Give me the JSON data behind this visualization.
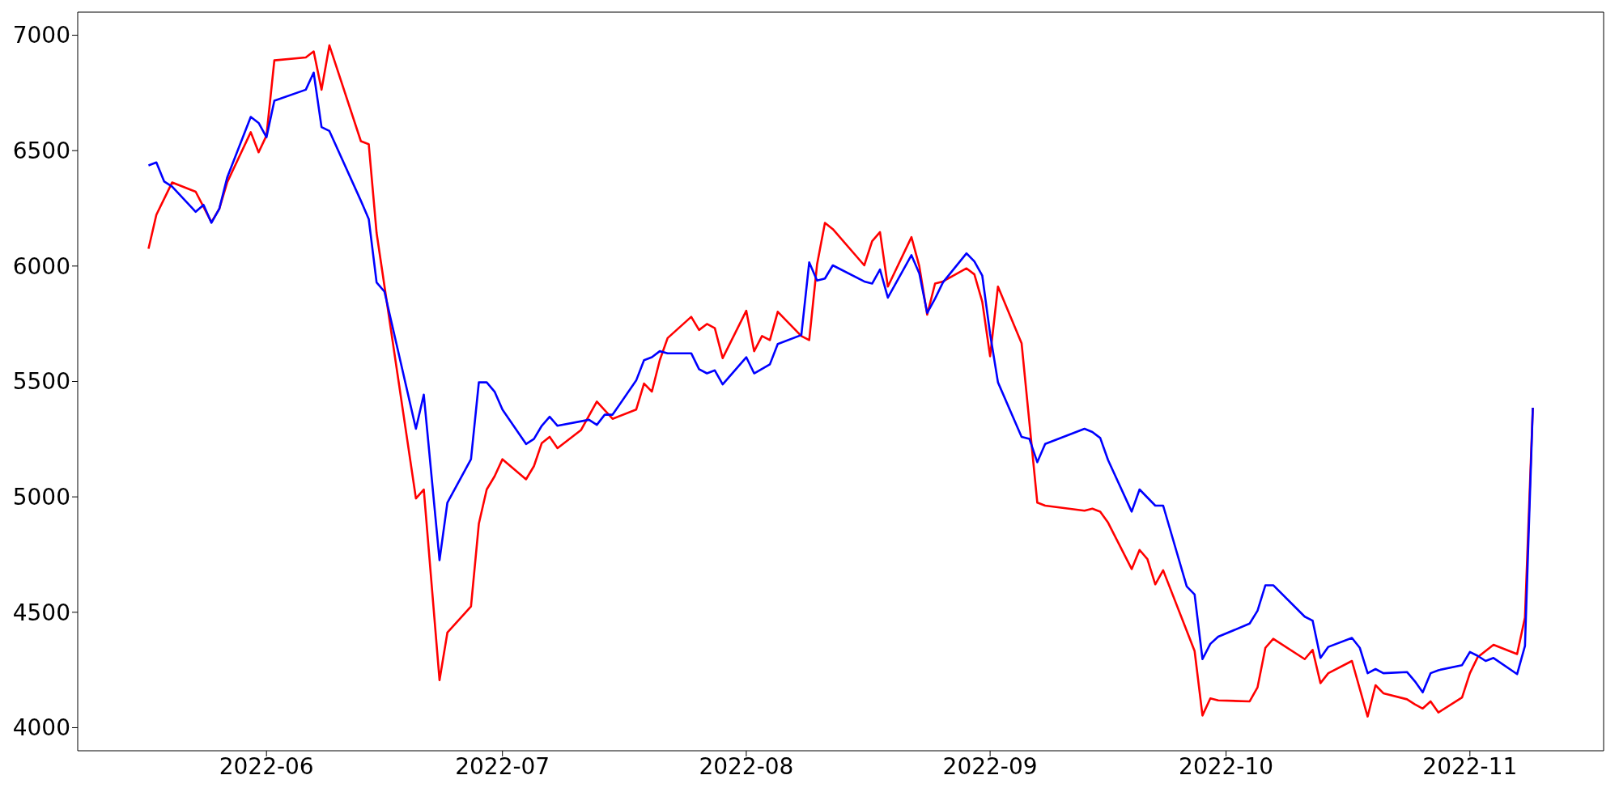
{
  "chart_data": {
    "type": "line",
    "marker": "none",
    "line_style": "solid",
    "xlim": [
      "2022-05-08",
      "2022-11-18"
    ],
    "xticks": [
      "2022-06",
      "2022-07",
      "2022-08",
      "2022-09",
      "2022-10",
      "2022-11"
    ],
    "ylim": [
      3900,
      7100
    ],
    "yticks": [
      4000,
      4500,
      5000,
      5500,
      6000,
      6500,
      7000
    ],
    "series": [
      {
        "color": "#ff0000",
        "x": [
          "2022-05-17",
          "2022-05-18",
          "2022-05-20",
          "2022-05-23",
          "2022-05-25",
          "2022-05-26",
          "2022-05-27",
          "2022-05-30",
          "2022-05-31",
          "2022-06-01",
          "2022-06-02",
          "2022-06-06",
          "2022-06-07",
          "2022-06-08",
          "2022-06-09",
          "2022-06-13",
          "2022-06-14",
          "2022-06-15",
          "2022-06-20",
          "2022-06-21",
          "2022-06-23",
          "2022-06-24",
          "2022-06-27",
          "2022-06-28",
          "2022-06-29",
          "2022-06-30",
          "2022-07-01",
          "2022-07-04",
          "2022-07-05",
          "2022-07-06",
          "2022-07-07",
          "2022-07-08",
          "2022-07-11",
          "2022-07-13",
          "2022-07-15",
          "2022-07-18",
          "2022-07-19",
          "2022-07-20",
          "2022-07-21",
          "2022-07-22",
          "2022-07-25",
          "2022-07-26",
          "2022-07-27",
          "2022-07-28",
          "2022-07-29",
          "2022-08-01",
          "2022-08-02",
          "2022-08-03",
          "2022-08-04",
          "2022-08-05",
          "2022-08-08",
          "2022-08-09",
          "2022-08-10",
          "2022-08-11",
          "2022-08-12",
          "2022-08-16",
          "2022-08-17",
          "2022-08-18",
          "2022-08-19",
          "2022-08-22",
          "2022-08-23",
          "2022-08-24",
          "2022-08-25",
          "2022-08-26",
          "2022-08-29",
          "2022-08-30",
          "2022-08-31",
          "2022-09-01",
          "2022-09-02",
          "2022-09-05",
          "2022-09-07",
          "2022-09-08",
          "2022-09-13",
          "2022-09-14",
          "2022-09-15",
          "2022-09-16",
          "2022-09-19",
          "2022-09-20",
          "2022-09-21",
          "2022-09-22",
          "2022-09-23",
          "2022-09-27",
          "2022-09-28",
          "2022-09-29",
          "2022-09-30",
          "2022-10-04",
          "2022-10-05",
          "2022-10-06",
          "2022-10-07",
          "2022-10-11",
          "2022-10-12",
          "2022-10-13",
          "2022-10-14",
          "2022-10-17",
          "2022-10-19",
          "2022-10-20",
          "2022-10-21",
          "2022-10-24",
          "2022-10-25",
          "2022-10-26",
          "2022-10-27",
          "2022-10-28",
          "2022-10-31",
          "2022-11-01",
          "2022-11-02",
          "2022-11-04",
          "2022-11-07",
          "2022-11-08",
          "2022-11-09"
        ],
        "values": [
          6075,
          6222,
          6362,
          6322,
          6190,
          6248,
          6362,
          6580,
          6493,
          6565,
          6891,
          6904,
          6930,
          6764,
          6956,
          6541,
          6528,
          6143,
          4993,
          5032,
          4206,
          4412,
          4525,
          4884,
          5032,
          5089,
          5163,
          5076,
          5133,
          5233,
          5260,
          5211,
          5290,
          5413,
          5338,
          5378,
          5491,
          5456,
          5592,
          5688,
          5780,
          5723,
          5749,
          5731,
          5601,
          5806,
          5631,
          5697,
          5679,
          5802,
          5697,
          5679,
          6007,
          6187,
          6160,
          6003,
          6108,
          6147,
          5911,
          6125,
          5999,
          5789,
          5924,
          5933,
          5990,
          5964,
          5846,
          5609,
          5911,
          5666,
          4975,
          4962,
          4940,
          4949,
          4936,
          4888,
          4687,
          4770,
          4730,
          4621,
          4682,
          4332,
          4053,
          4127,
          4118,
          4114,
          4175,
          4346,
          4385,
          4297,
          4337,
          4193,
          4236,
          4289,
          4048,
          4184,
          4149,
          4123,
          4101,
          4083,
          4114,
          4066,
          4131,
          4236,
          4306,
          4359,
          4319,
          4477,
          5386
        ]
      },
      {
        "color": "#0000ff",
        "x": [
          "2022-05-17",
          "2022-05-18",
          "2022-05-19",
          "2022-05-20",
          "2022-05-23",
          "2022-05-24",
          "2022-05-25",
          "2022-05-26",
          "2022-05-27",
          "2022-05-30",
          "2022-05-31",
          "2022-06-01",
          "2022-06-02",
          "2022-06-06",
          "2022-06-07",
          "2022-06-08",
          "2022-06-09",
          "2022-06-13",
          "2022-06-14",
          "2022-06-15",
          "2022-06-16",
          "2022-06-20",
          "2022-06-21",
          "2022-06-23",
          "2022-06-24",
          "2022-06-27",
          "2022-06-28",
          "2022-06-29",
          "2022-06-30",
          "2022-07-01",
          "2022-07-04",
          "2022-07-05",
          "2022-07-06",
          "2022-07-07",
          "2022-07-08",
          "2022-07-12",
          "2022-07-13",
          "2022-07-14",
          "2022-07-15",
          "2022-07-18",
          "2022-07-19",
          "2022-07-20",
          "2022-07-21",
          "2022-07-22",
          "2022-07-25",
          "2022-07-26",
          "2022-07-27",
          "2022-07-28",
          "2022-07-29",
          "2022-08-01",
          "2022-08-02",
          "2022-08-04",
          "2022-08-05",
          "2022-08-08",
          "2022-08-09",
          "2022-08-10",
          "2022-08-11",
          "2022-08-12",
          "2022-08-16",
          "2022-08-17",
          "2022-08-18",
          "2022-08-19",
          "2022-08-22",
          "2022-08-23",
          "2022-08-24",
          "2022-08-25",
          "2022-08-26",
          "2022-08-29",
          "2022-08-30",
          "2022-08-31",
          "2022-09-01",
          "2022-09-02",
          "2022-09-05",
          "2022-09-06",
          "2022-09-07",
          "2022-09-08",
          "2022-09-13",
          "2022-09-14",
          "2022-09-15",
          "2022-09-16",
          "2022-09-19",
          "2022-09-20",
          "2022-09-21",
          "2022-09-22",
          "2022-09-23",
          "2022-09-26",
          "2022-09-27",
          "2022-09-28",
          "2022-09-29",
          "2022-09-30",
          "2022-10-04",
          "2022-10-05",
          "2022-10-06",
          "2022-10-07",
          "2022-10-11",
          "2022-10-12",
          "2022-10-13",
          "2022-10-14",
          "2022-10-17",
          "2022-10-18",
          "2022-10-19",
          "2022-10-20",
          "2022-10-21",
          "2022-10-24",
          "2022-10-25",
          "2022-10-26",
          "2022-10-27",
          "2022-10-28",
          "2022-10-31",
          "2022-11-01",
          "2022-11-02",
          "2022-11-03",
          "2022-11-04",
          "2022-11-07",
          "2022-11-08",
          "2022-11-09"
        ],
        "values": [
          6436,
          6449,
          6366,
          6344,
          6235,
          6265,
          6187,
          6248,
          6383,
          6646,
          6620,
          6558,
          6716,
          6764,
          6838,
          6602,
          6585,
          6283,
          6204,
          5929,
          5889,
          5295,
          5443,
          4726,
          4975,
          5163,
          5496,
          5496,
          5456,
          5378,
          5229,
          5251,
          5308,
          5347,
          5308,
          5334,
          5312,
          5356,
          5356,
          5504,
          5592,
          5605,
          5631,
          5622,
          5622,
          5553,
          5535,
          5548,
          5487,
          5605,
          5535,
          5574,
          5662,
          5701,
          6016,
          5937,
          5946,
          6003,
          5933,
          5924,
          5985,
          5863,
          6047,
          5968,
          5797,
          5859,
          5929,
          6055,
          6020,
          5959,
          5706,
          5496,
          5260,
          5251,
          5150,
          5229,
          5295,
          5281,
          5255,
          5159,
          4936,
          5032,
          4997,
          4962,
          4962,
          4612,
          4577,
          4297,
          4363,
          4394,
          4451,
          4507,
          4617,
          4617,
          4481,
          4464,
          4302,
          4350,
          4389,
          4346,
          4236,
          4254,
          4236,
          4241,
          4201,
          4153,
          4236,
          4249,
          4271,
          4328,
          4311,
          4289,
          4302,
          4232,
          4354,
          5386
        ]
      }
    ]
  }
}
